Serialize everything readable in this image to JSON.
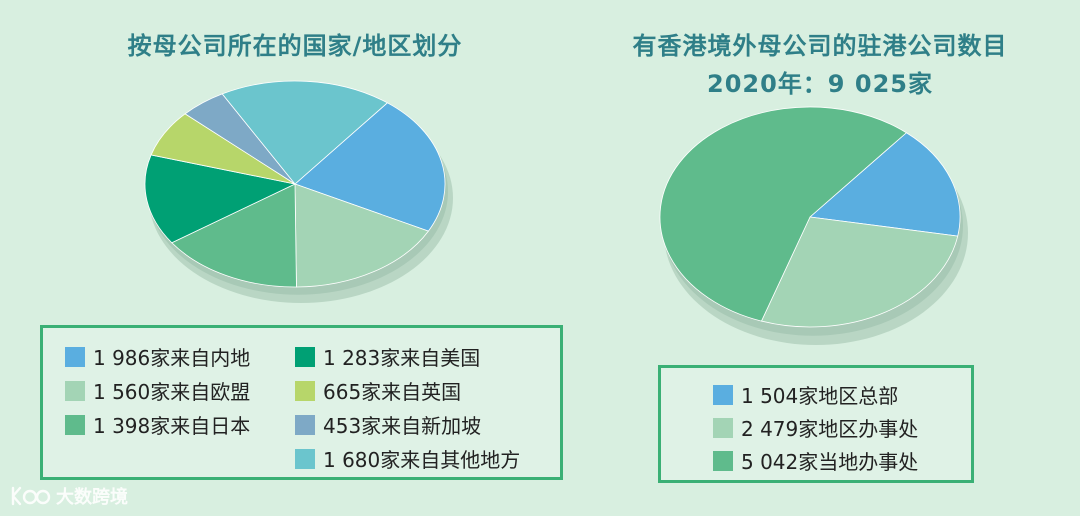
{
  "chart_data": [
    {
      "type": "pie",
      "title": "按母公司所在的国家/地区划分",
      "legend": "bottom",
      "slices": [
        {
          "label": "1 986家来自内地",
          "value": 1986,
          "color": "#5aaee0"
        },
        {
          "label": "1 560家来自欧盟",
          "value": 1560,
          "color": "#a3d4b5"
        },
        {
          "label": "1 398家来自日本",
          "value": 1398,
          "color": "#5fbb8c"
        },
        {
          "label": "1 283家来自美国",
          "value": 1283,
          "color": "#00a074"
        },
        {
          "label": "665家来自英国",
          "value": 665,
          "color": "#b7d66a"
        },
        {
          "label": "453家来自新加坡",
          "value": 453,
          "color": "#7ea9c6"
        },
        {
          "label": "1 680家来自其他地方",
          "value": 1680,
          "color": "#6bc5cd"
        }
      ]
    },
    {
      "type": "pie",
      "title": "有香港境外母公司的驻港公司数目",
      "subtitle": "2020年：9 025家",
      "legend": "bottom",
      "slices": [
        {
          "label": "1 504家地区总部",
          "value": 1504,
          "color": "#5aaee0"
        },
        {
          "label": "2 479家地区办事处",
          "value": 2479,
          "color": "#a3d4b5"
        },
        {
          "label": "5 042家当地办事处",
          "value": 5042,
          "color": "#5fbb8c"
        }
      ]
    }
  ],
  "watermark": "大数跨境"
}
